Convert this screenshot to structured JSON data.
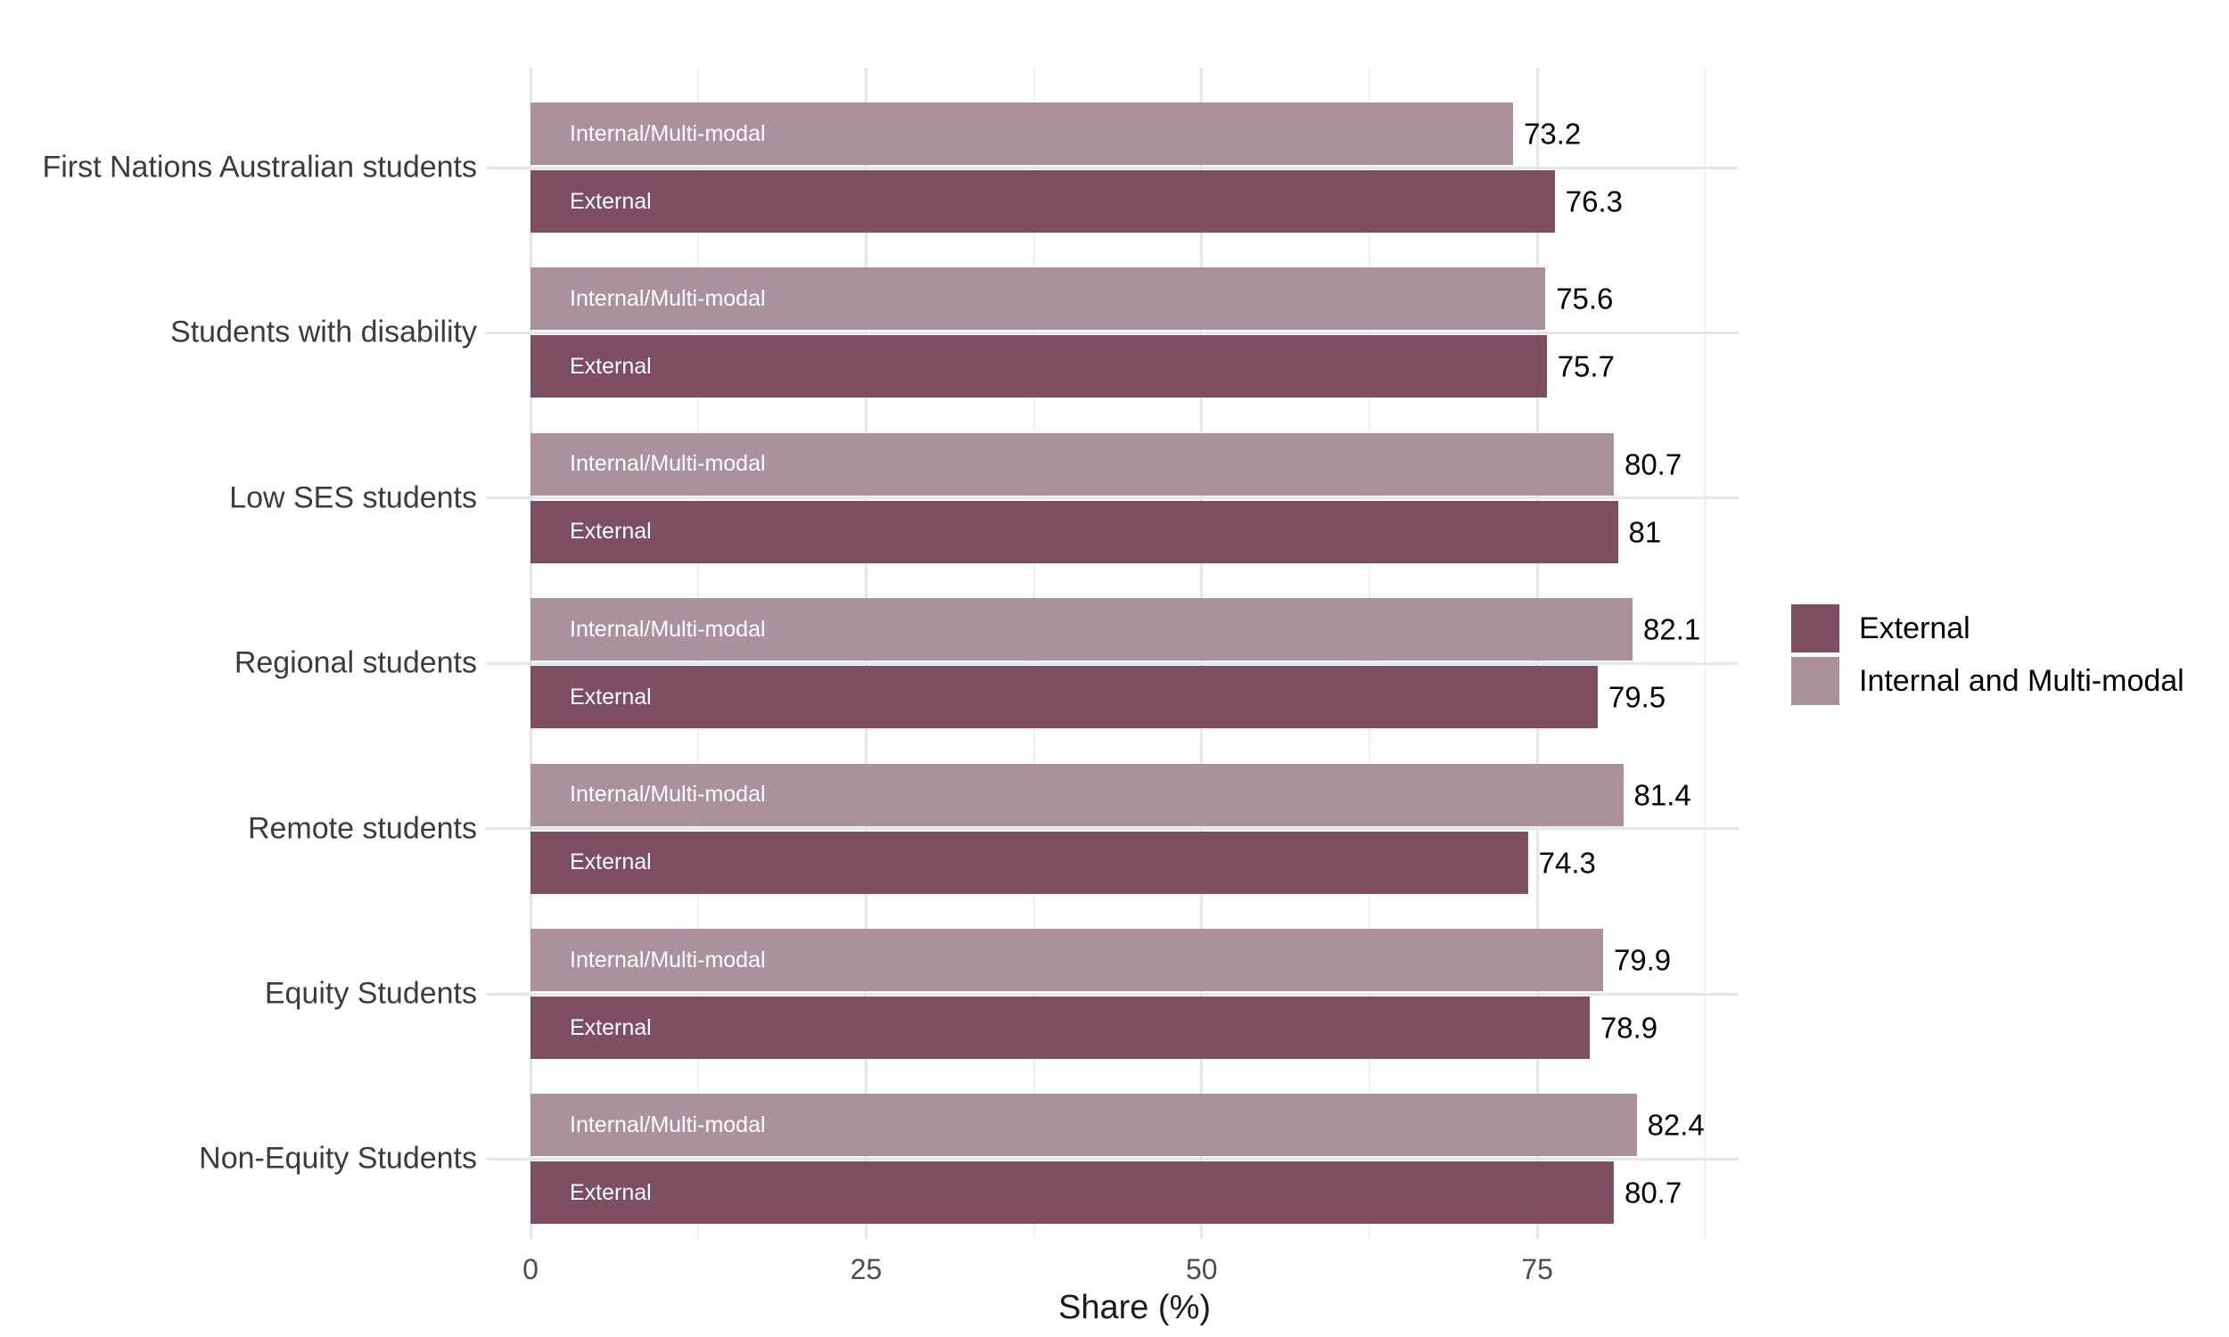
{
  "figure": {
    "background": "#FFFFFF"
  },
  "chart_data": {
    "type": "bar",
    "orientation": "horizontal",
    "title": "",
    "xlabel": "Share (%)",
    "ylabel": "",
    "xlim": [
      0,
      90
    ],
    "xticks": [
      "0",
      "25",
      "50",
      "75"
    ],
    "xtick_values": [
      0,
      25,
      50,
      75
    ],
    "minor_grid_values": [
      12.5,
      37.5,
      62.5,
      87.5
    ],
    "grid": "vertical major+minor gridlines, horizontal major gridline at each category center",
    "legend_position": "right of panel, vertically centered",
    "categories": [
      "First Nations Australian students",
      "Students with disability",
      "Low SES students",
      "Regional students",
      "Remote students",
      "Equity Students",
      "Non-Equity Students"
    ],
    "series": [
      {
        "name": "External",
        "bar_label": "External",
        "color": "#7E4E63",
        "values": [
          76.3,
          75.7,
          81,
          79.5,
          74.3,
          78.9,
          80.7
        ],
        "value_labels": [
          "76.3",
          "75.7",
          "81",
          "79.5",
          "74.3",
          "78.9",
          "80.7"
        ]
      },
      {
        "name": "Internal and Multi-modal",
        "bar_label": "Internal/Multi-modal",
        "color": "#AB909D",
        "values": [
          73.2,
          75.6,
          80.7,
          82.1,
          81.4,
          79.9,
          82.4
        ],
        "value_labels": [
          "73.2",
          "75.6",
          "80.7",
          "82.1",
          "81.4",
          "79.9",
          "82.4"
        ]
      }
    ],
    "bar_order_top_to_bottom": [
      1,
      0
    ],
    "colors": {
      "grid_major": "#E6E6E6",
      "grid_minor": "#F0F0F0",
      "category_gridline": "#E6E6E6",
      "tick_label": "#4D4D4D",
      "category_label": "#3C3C3C",
      "value_label": "#000000",
      "bar_inner_label": "#FFFFFF",
      "axis_title": "#1A1A1A",
      "legend_text": "#000000"
    }
  }
}
